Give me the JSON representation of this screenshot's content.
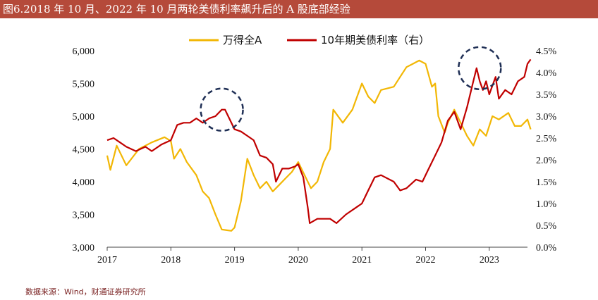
{
  "title": "图6.2018 年 10 月、2022 年 10 月两轮美债利率飙升后的 A 股底部经验",
  "source": "数据来源：Wind，财通证券研究所",
  "chart_data": {
    "type": "line",
    "x_ticks": [
      "2017",
      "2018",
      "2019",
      "2020",
      "2021",
      "2022",
      "2023"
    ],
    "y_left": {
      "lim": [
        3000,
        6000
      ],
      "ticks": [
        "3,000",
        "3,500",
        "4,000",
        "4,500",
        "5,000",
        "5,500",
        "6,000"
      ]
    },
    "y_right": {
      "lim": [
        0,
        4.5
      ],
      "ticks": [
        "0.0%",
        "0.5%",
        "1.0%",
        "1.5%",
        "2.0%",
        "2.5%",
        "3.0%",
        "3.5%",
        "4.0%",
        "4.5%"
      ]
    },
    "series": [
      {
        "name": "万得全A",
        "axis": "left",
        "color": "#f2b705",
        "points": [
          [
            2017.0,
            4400
          ],
          [
            2017.05,
            4180
          ],
          [
            2017.15,
            4550
          ],
          [
            2017.3,
            4250
          ],
          [
            2017.5,
            4500
          ],
          [
            2017.7,
            4600
          ],
          [
            2017.9,
            4680
          ],
          [
            2018.0,
            4620
          ],
          [
            2018.05,
            4350
          ],
          [
            2018.15,
            4500
          ],
          [
            2018.25,
            4300
          ],
          [
            2018.4,
            4100
          ],
          [
            2018.5,
            3850
          ],
          [
            2018.6,
            3750
          ],
          [
            2018.7,
            3500
          ],
          [
            2018.8,
            3270
          ],
          [
            2018.95,
            3250
          ],
          [
            2019.0,
            3300
          ],
          [
            2019.1,
            3700
          ],
          [
            2019.2,
            4350
          ],
          [
            2019.3,
            4100
          ],
          [
            2019.4,
            3900
          ],
          [
            2019.5,
            4000
          ],
          [
            2019.6,
            3850
          ],
          [
            2019.7,
            3950
          ],
          [
            2019.8,
            4050
          ],
          [
            2019.9,
            4150
          ],
          [
            2020.0,
            4300
          ],
          [
            2020.1,
            4100
          ],
          [
            2020.2,
            3900
          ],
          [
            2020.3,
            4000
          ],
          [
            2020.4,
            4300
          ],
          [
            2020.5,
            4500
          ],
          [
            2020.55,
            5100
          ],
          [
            2020.7,
            4900
          ],
          [
            2020.85,
            5100
          ],
          [
            2021.0,
            5500
          ],
          [
            2021.1,
            5300
          ],
          [
            2021.2,
            5200
          ],
          [
            2021.3,
            5400
          ],
          [
            2021.5,
            5450
          ],
          [
            2021.6,
            5600
          ],
          [
            2021.7,
            5750
          ],
          [
            2021.8,
            5800
          ],
          [
            2021.9,
            5850
          ],
          [
            2022.0,
            5800
          ],
          [
            2022.1,
            5450
          ],
          [
            2022.15,
            5500
          ],
          [
            2022.2,
            5000
          ],
          [
            2022.3,
            4750
          ],
          [
            2022.35,
            4900
          ],
          [
            2022.45,
            5100
          ],
          [
            2022.55,
            4900
          ],
          [
            2022.65,
            4700
          ],
          [
            2022.75,
            4550
          ],
          [
            2022.85,
            4800
          ],
          [
            2022.95,
            4700
          ],
          [
            2023.05,
            5000
          ],
          [
            2023.15,
            4950
          ],
          [
            2023.3,
            5050
          ],
          [
            2023.4,
            4850
          ],
          [
            2023.5,
            4850
          ],
          [
            2023.6,
            4950
          ],
          [
            2023.65,
            4800
          ]
        ]
      },
      {
        "name": "10年期美债利率（右）",
        "axis": "right",
        "color": "#c00000",
        "points": [
          [
            2017.0,
            2.45
          ],
          [
            2017.1,
            2.5
          ],
          [
            2017.2,
            2.4
          ],
          [
            2017.3,
            2.3
          ],
          [
            2017.45,
            2.2
          ],
          [
            2017.6,
            2.3
          ],
          [
            2017.7,
            2.2
          ],
          [
            2017.85,
            2.35
          ],
          [
            2018.0,
            2.45
          ],
          [
            2018.1,
            2.8
          ],
          [
            2018.2,
            2.85
          ],
          [
            2018.3,
            2.85
          ],
          [
            2018.4,
            2.95
          ],
          [
            2018.5,
            2.85
          ],
          [
            2018.6,
            2.95
          ],
          [
            2018.7,
            3.0
          ],
          [
            2018.8,
            3.15
          ],
          [
            2018.85,
            3.15
          ],
          [
            2018.9,
            3.0
          ],
          [
            2019.0,
            2.7
          ],
          [
            2019.1,
            2.65
          ],
          [
            2019.2,
            2.55
          ],
          [
            2019.3,
            2.45
          ],
          [
            2019.4,
            2.1
          ],
          [
            2019.5,
            2.05
          ],
          [
            2019.6,
            1.9
          ],
          [
            2019.65,
            1.5
          ],
          [
            2019.75,
            1.8
          ],
          [
            2019.85,
            1.8
          ],
          [
            2019.95,
            1.85
          ],
          [
            2020.0,
            1.9
          ],
          [
            2020.08,
            1.6
          ],
          [
            2020.15,
            0.9
          ],
          [
            2020.18,
            0.55
          ],
          [
            2020.3,
            0.65
          ],
          [
            2020.5,
            0.65
          ],
          [
            2020.6,
            0.55
          ],
          [
            2020.75,
            0.75
          ],
          [
            2020.9,
            0.9
          ],
          [
            2021.0,
            1.0
          ],
          [
            2021.1,
            1.3
          ],
          [
            2021.2,
            1.6
          ],
          [
            2021.3,
            1.65
          ],
          [
            2021.5,
            1.5
          ],
          [
            2021.6,
            1.3
          ],
          [
            2021.7,
            1.35
          ],
          [
            2021.85,
            1.55
          ],
          [
            2021.95,
            1.5
          ],
          [
            2022.05,
            1.8
          ],
          [
            2022.15,
            2.1
          ],
          [
            2022.25,
            2.4
          ],
          [
            2022.35,
            2.9
          ],
          [
            2022.45,
            3.1
          ],
          [
            2022.55,
            2.7
          ],
          [
            2022.65,
            3.2
          ],
          [
            2022.75,
            3.8
          ],
          [
            2022.8,
            4.1
          ],
          [
            2022.85,
            3.8
          ],
          [
            2022.9,
            3.6
          ],
          [
            2022.95,
            3.8
          ],
          [
            2023.0,
            3.5
          ],
          [
            2023.1,
            3.9
          ],
          [
            2023.15,
            3.4
          ],
          [
            2023.25,
            3.6
          ],
          [
            2023.35,
            3.5
          ],
          [
            2023.45,
            3.8
          ],
          [
            2023.55,
            3.9
          ],
          [
            2023.6,
            4.2
          ],
          [
            2023.65,
            4.3
          ]
        ]
      }
    ],
    "annotations": [
      {
        "shape": "dashed-circle",
        "x": 2018.8,
        "y_right": 3.15
      },
      {
        "shape": "dashed-circle",
        "x": 2022.85,
        "y_right": 4.1
      }
    ]
  }
}
